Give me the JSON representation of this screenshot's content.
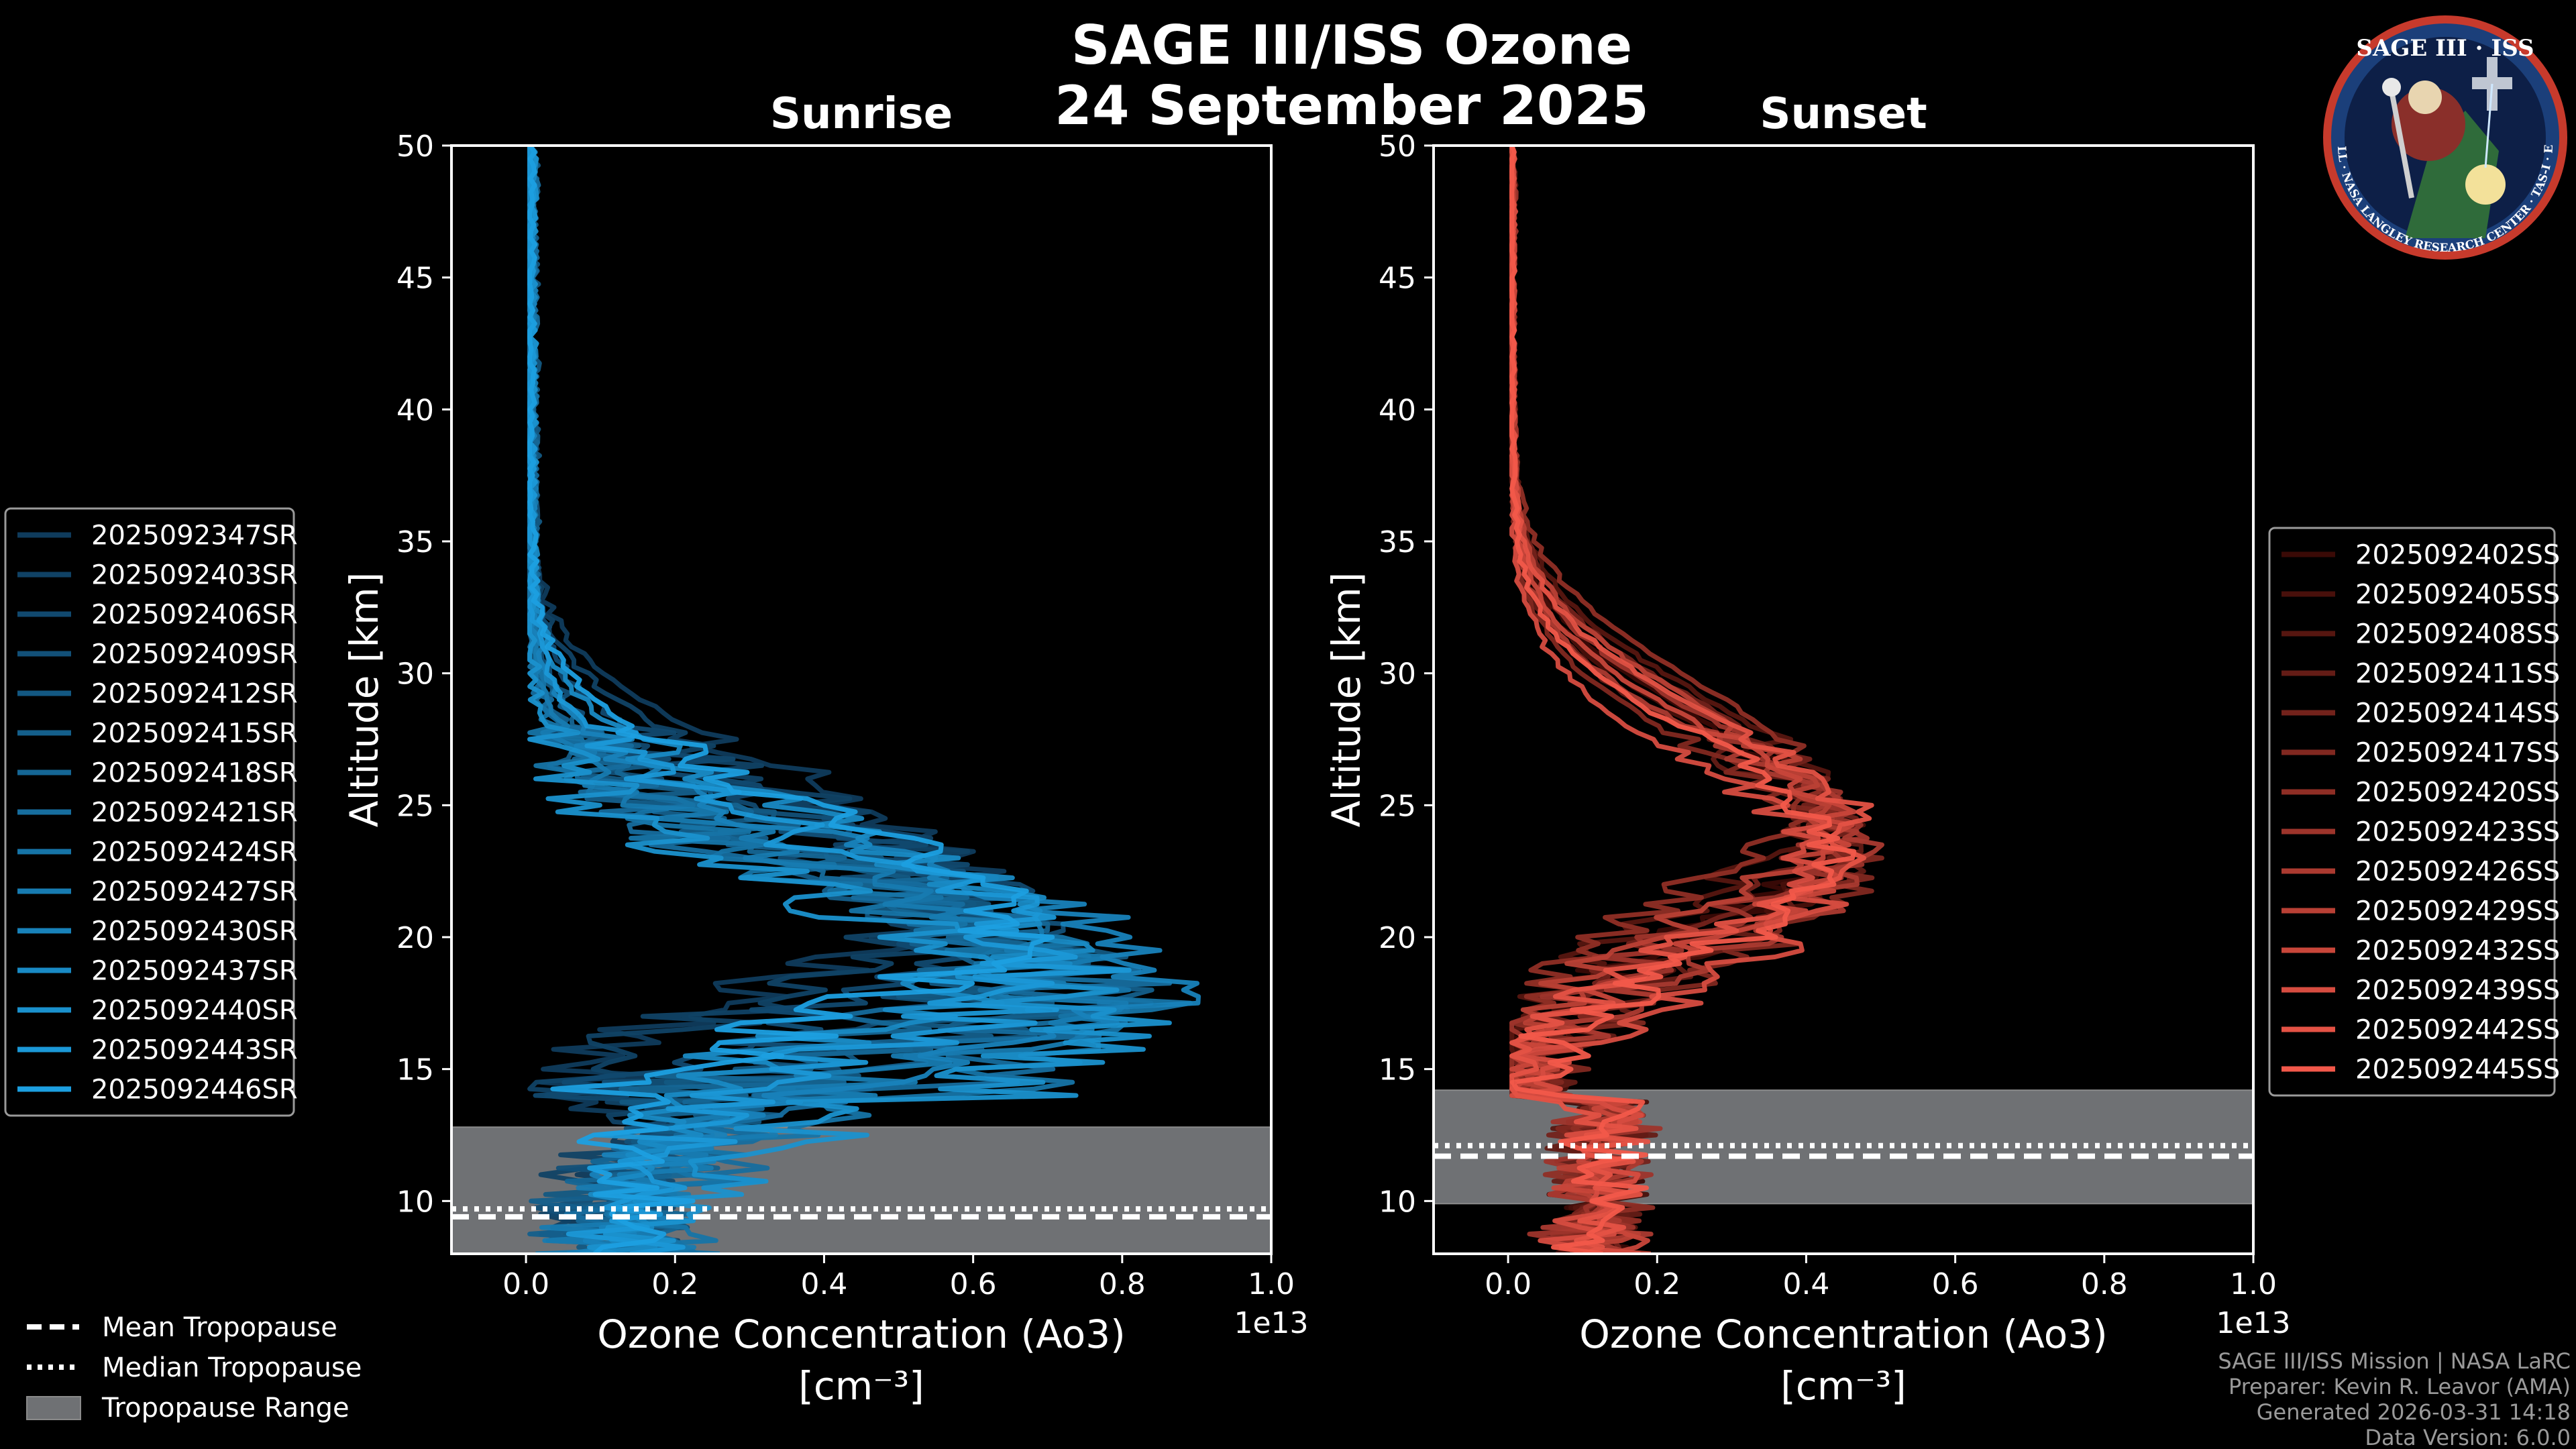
{
  "figure": {
    "title_line1": "SAGE III/ISS Ozone",
    "title_line2": "24 September 2025"
  },
  "badge": {
    "name": "SAGE III · ISS",
    "ring_text": "BALL · NASA LANGLEY RESEARCH CENTER · TAS-I · ESA"
  },
  "chart_data": [
    {
      "type": "line",
      "title": "Sunrise",
      "xlabel_line1": "Ozone Concentration (Ao3)",
      "xlabel_line2": "[cm⁻³]",
      "ylabel": "Altitude [km]",
      "x_offset_label": "1e13",
      "xlim": [
        -0.1,
        1.0
      ],
      "ylim": [
        8,
        50
      ],
      "xticks": [
        "0.0",
        "0.2",
        "0.4",
        "0.6",
        "0.8",
        "1.0"
      ],
      "yticks": [
        "10",
        "15",
        "20",
        "25",
        "30",
        "35",
        "40",
        "45",
        "50"
      ],
      "color_start": "#0f3b5c",
      "color_end": "#1c9fe0",
      "series_names": [
        "2025092347SR",
        "2025092403SR",
        "2025092406SR",
        "2025092409SR",
        "2025092412SR",
        "2025092415SR",
        "2025092418SR",
        "2025092421SR",
        "2025092424SR",
        "2025092427SR",
        "2025092430SR",
        "2025092437SR",
        "2025092440SR",
        "2025092443SR",
        "2025092446SR"
      ],
      "profile_params": [
        {
          "peak": 0.58,
          "alt": 22.0,
          "jitter": 0.05
        },
        {
          "peak": 0.55,
          "alt": 21.5,
          "jitter": 0.06
        },
        {
          "peak": 0.6,
          "alt": 20.5,
          "jitter": 0.07
        },
        {
          "peak": 0.62,
          "alt": 19.5,
          "jitter": 0.08
        },
        {
          "peak": 0.66,
          "alt": 18.5,
          "jitter": 0.09
        },
        {
          "peak": 0.7,
          "alt": 18.0,
          "jitter": 0.08
        },
        {
          "peak": 0.64,
          "alt": 19.0,
          "jitter": 0.07
        },
        {
          "peak": 0.74,
          "alt": 17.5,
          "jitter": 0.08
        },
        {
          "peak": 0.8,
          "alt": 17.0,
          "jitter": 0.07
        },
        {
          "peak": 0.72,
          "alt": 18.0,
          "jitter": 0.06
        },
        {
          "peak": 0.85,
          "alt": 18.5,
          "jitter": 0.05
        },
        {
          "peak": 0.68,
          "alt": 20.0,
          "jitter": 0.06
        },
        {
          "peak": 0.76,
          "alt": 16.5,
          "jitter": 0.07
        },
        {
          "peak": 0.7,
          "alt": 19.0,
          "jitter": 0.06
        },
        {
          "peak": 0.65,
          "alt": 20.5,
          "jitter": 0.05
        }
      ],
      "tropopause_range": [
        8,
        12.8
      ],
      "mean_tropopause": 9.4,
      "median_tropopause": 9.7
    },
    {
      "type": "line",
      "title": "Sunset",
      "xlabel_line1": "Ozone Concentration (Ao3)",
      "xlabel_line2": "[cm⁻³]",
      "ylabel": "Altitude [km]",
      "x_offset_label": "1e13",
      "xlim": [
        -0.1,
        1.0
      ],
      "ylim": [
        8,
        50
      ],
      "xticks": [
        "0.0",
        "0.2",
        "0.4",
        "0.6",
        "0.8",
        "1.0"
      ],
      "yticks": [
        "10",
        "15",
        "20",
        "25",
        "30",
        "35",
        "40",
        "45",
        "50"
      ],
      "color_start": "#3a0a06",
      "color_end": "#f2584a",
      "series_names": [
        "2025092402SS",
        "2025092405SS",
        "2025092408SS",
        "2025092411SS",
        "2025092414SS",
        "2025092417SS",
        "2025092420SS",
        "2025092423SS",
        "2025092426SS",
        "2025092429SS",
        "2025092432SS",
        "2025092439SS",
        "2025092442SS",
        "2025092445SS"
      ],
      "profile_params": [
        {
          "peak": 0.42,
          "alt": 24.0,
          "jitter": 0.03
        },
        {
          "peak": 0.44,
          "alt": 23.5,
          "jitter": 0.03
        },
        {
          "peak": 0.41,
          "alt": 25.0,
          "jitter": 0.03
        },
        {
          "peak": 0.45,
          "alt": 23.0,
          "jitter": 0.04
        },
        {
          "peak": 0.43,
          "alt": 24.5,
          "jitter": 0.03
        },
        {
          "peak": 0.46,
          "alt": 22.5,
          "jitter": 0.03
        },
        {
          "peak": 0.4,
          "alt": 25.5,
          "jitter": 0.03
        },
        {
          "peak": 0.44,
          "alt": 24.0,
          "jitter": 0.04
        },
        {
          "peak": 0.47,
          "alt": 23.0,
          "jitter": 0.03
        },
        {
          "peak": 0.42,
          "alt": 24.5,
          "jitter": 0.03
        },
        {
          "peak": 0.45,
          "alt": 23.5,
          "jitter": 0.03
        },
        {
          "peak": 0.43,
          "alt": 22.0,
          "jitter": 0.04
        },
        {
          "peak": 0.46,
          "alt": 24.0,
          "jitter": 0.03
        },
        {
          "peak": 0.44,
          "alt": 23.0,
          "jitter": 0.03
        }
      ],
      "tropopause_range": [
        9.9,
        14.2
      ],
      "mean_tropopause": 11.7,
      "median_tropopause": 12.1
    }
  ],
  "tropopause_legend": {
    "mean": "Mean Tropopause",
    "median": "Median Tropopause",
    "range": "Tropopause Range"
  },
  "footer": {
    "line1": "SAGE III/ISS Mission | NASA LaRC",
    "line2": "Preparer: Kevin R. Leavor (AMA)",
    "line3": "Generated 2026-03-31 14:18",
    "line4": "Data Version: 6.0.0"
  },
  "colors": {
    "background": "#000000",
    "tropopause_band": "#6f7174",
    "axes": "#ffffff"
  }
}
